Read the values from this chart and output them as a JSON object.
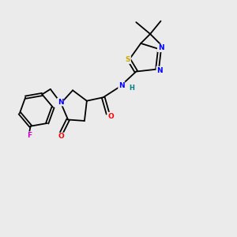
{
  "bg_color": "#ebebeb",
  "bond_color": "#000000",
  "atom_colors": {
    "N": "#0000ff",
    "O": "#ff0000",
    "S": "#ccaa00",
    "F": "#cc00cc",
    "H": "#008080",
    "C": "#000000"
  },
  "lw": 1.3
}
